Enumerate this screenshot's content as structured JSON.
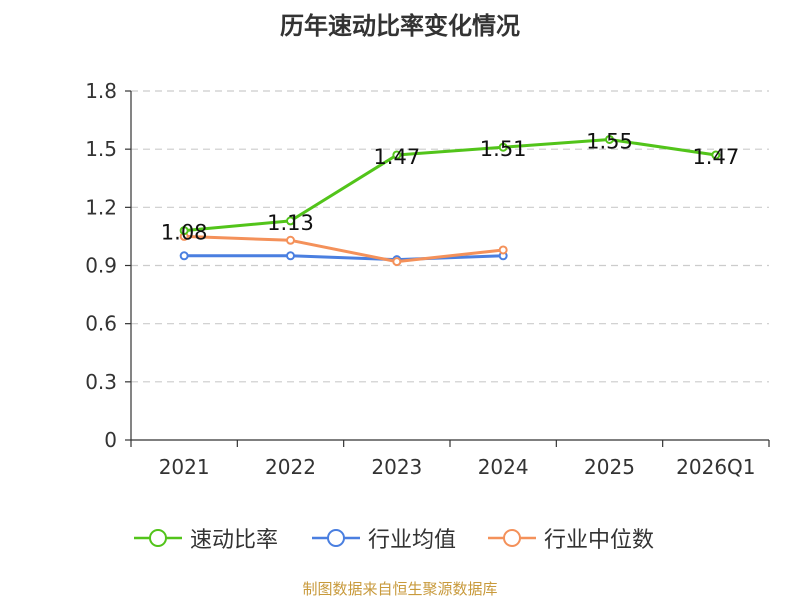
{
  "chart_data": {
    "type": "line",
    "title": "历年速动比率变化情况",
    "categories": [
      "2021",
      "2022",
      "2023",
      "2024",
      "2025",
      "2026Q1"
    ],
    "ylim": [
      0,
      1.8
    ],
    "yticks": [
      "0",
      "0.3",
      "0.6",
      "0.9",
      "1.2",
      "1.5",
      "1.8"
    ],
    "grid": true,
    "legend_position": "bottom",
    "series": [
      {
        "name": "速动比率",
        "color": "#52c41a",
        "values": [
          1.08,
          1.13,
          1.47,
          1.51,
          1.55,
          1.47
        ],
        "labels": [
          "1.08",
          "1.13",
          "1.47",
          "1.51",
          "1.55",
          "1.47"
        ]
      },
      {
        "name": "行业均值",
        "color": "#4a7fe0",
        "values": [
          0.95,
          0.95,
          0.93,
          0.95,
          null,
          null
        ]
      },
      {
        "name": "行业中位数",
        "color": "#f4915a",
        "values": [
          1.05,
          1.03,
          0.92,
          0.98,
          null,
          null
        ]
      }
    ]
  },
  "footer": {
    "source": "制图数据来自恒生聚源数据库",
    "source_color": "#c89a3c"
  }
}
